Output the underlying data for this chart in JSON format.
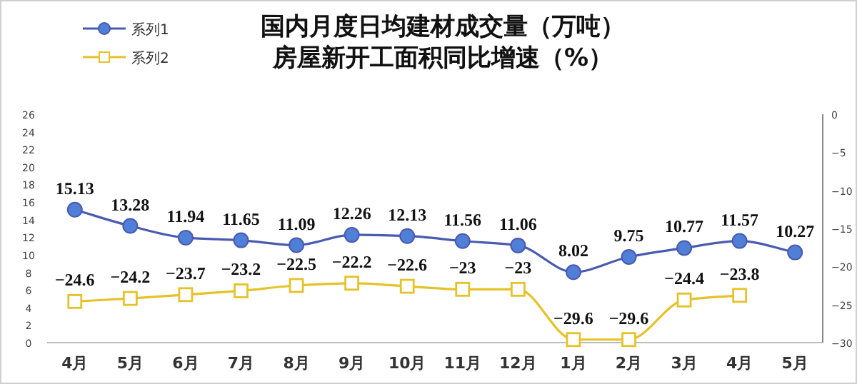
{
  "chart_data": {
    "type": "line",
    "title": "国内月度日均建材成交量（万吨）",
    "subtitle": "房屋新开工面积同比增速（%）",
    "categories": [
      "4月",
      "5月",
      "6月",
      "7月",
      "8月",
      "9月",
      "10月",
      "11月",
      "12月",
      "1月",
      "2月",
      "3月",
      "4月",
      "5月"
    ],
    "series": [
      {
        "name": "系列1",
        "color": "#4a5ab0",
        "marker": "circle",
        "axis": "y",
        "values": [
          15.13,
          13.28,
          11.94,
          11.65,
          11.09,
          12.26,
          12.13,
          11.56,
          11.06,
          8.02,
          9.75,
          10.77,
          11.57,
          10.27
        ]
      },
      {
        "name": "系列2",
        "color": "#e6c229",
        "marker": "square",
        "axis": "y2",
        "values": [
          -24.6,
          -24.2,
          -23.7,
          -23.2,
          -22.5,
          -22.2,
          -22.6,
          -23,
          -23,
          -29.6,
          -29.6,
          -24.4,
          -23.8,
          null
        ]
      }
    ],
    "ylim": [
      0,
      26
    ],
    "yticks": [
      0,
      2,
      4,
      6,
      8,
      10,
      12,
      14,
      16,
      18,
      20,
      22,
      24,
      26
    ],
    "y2lim": [
      -30,
      0
    ],
    "y2ticks": [
      -30,
      -25,
      -20,
      -15,
      -10,
      -5,
      0
    ],
    "data_labels": true,
    "legend": "top left",
    "grid": false,
    "line_style": "solid"
  }
}
